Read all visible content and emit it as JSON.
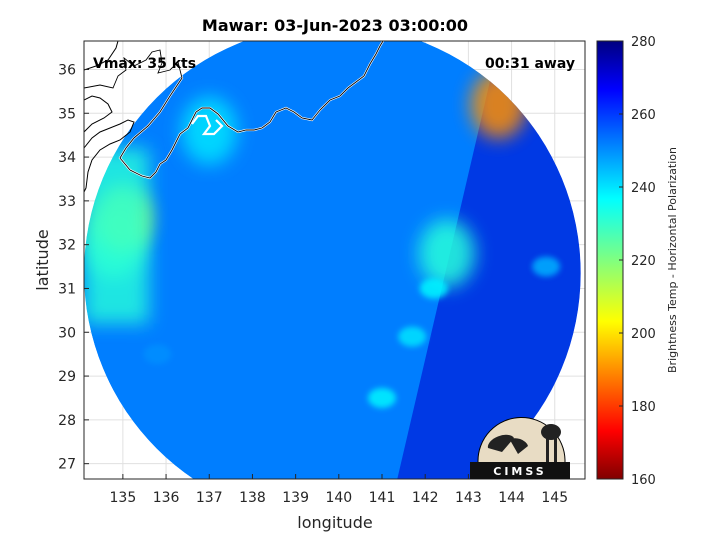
{
  "chart_data": {
    "type": "heatmap",
    "title": "Mawar: 03-Jun-2023 03:00:00",
    "xlabel": "longitude",
    "ylabel": "latitude",
    "xlim": [
      134.1,
      145.7
    ],
    "ylim": [
      26.65,
      36.65
    ],
    "xticks": [
      135,
      136,
      137,
      138,
      139,
      140,
      141,
      142,
      143,
      144,
      145
    ],
    "yticks": [
      27,
      28,
      29,
      30,
      31,
      32,
      33,
      34,
      35,
      36
    ],
    "grid": true,
    "annotations": {
      "vmax": "Vmax: 35 kts",
      "time_away": "00:31 away"
    },
    "colorbar": {
      "label": "Brightness Temp - Horizontal Polarization",
      "range": [
        160,
        280
      ],
      "ticks": [
        160,
        180,
        200,
        220,
        240,
        260,
        280
      ],
      "colormap": "jet"
    },
    "swath": {
      "center": [
        139.85,
        31.35
      ],
      "radius_lon": 5.75,
      "radius_lat": 5.55,
      "background_value": 252
    },
    "features": [
      {
        "name": "western warm band",
        "lon": 134.8,
        "lat": 32.0,
        "value": 228
      },
      {
        "name": "warm patch near 135E 32.6N",
        "lon": 135.0,
        "lat": 32.6,
        "value": 212
      },
      {
        "name": "northern coastal band",
        "lon": 137.0,
        "lat": 34.6,
        "value": 240
      },
      {
        "name": "cold spot near 143.7E 35.2N",
        "lon": 143.7,
        "lat": 35.2,
        "value": 190
      },
      {
        "name": "rain band segment",
        "lon": 142.5,
        "lat": 31.8,
        "value": 232
      },
      {
        "name": "rain band segment",
        "lon": 142.2,
        "lat": 31.0,
        "value": 238
      },
      {
        "name": "rain band segment",
        "lon": 141.7,
        "lat": 29.9,
        "value": 240
      },
      {
        "name": "rain band segment",
        "lon": 141.0,
        "lat": 28.5,
        "value": 238
      },
      {
        "name": "south-west edge",
        "lon": 135.8,
        "lat": 29.5,
        "value": 250
      },
      {
        "name": "eastern scattered cells",
        "lon": 144.8,
        "lat": 31.5,
        "value": 246
      }
    ],
    "logo": "CIMSS"
  }
}
